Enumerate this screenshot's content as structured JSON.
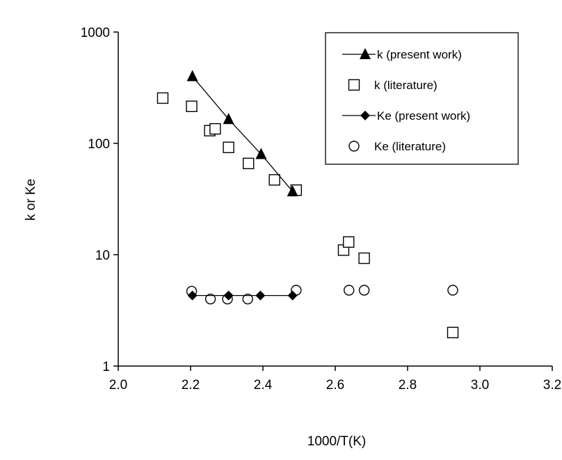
{
  "chart_data": {
    "type": "scatter",
    "title": "",
    "xlabel": "1000/T(K)",
    "ylabel": "k or Ke",
    "xlim": [
      2.0,
      3.2
    ],
    "ylim": [
      1,
      1000
    ],
    "yscale": "log",
    "x_ticks": [
      "2.0",
      "2.2",
      "2.4",
      "2.6",
      "2.8",
      "3.0",
      "3.2"
    ],
    "y_ticks": [
      "1",
      "10",
      "100",
      "1000"
    ],
    "grid": false,
    "legend_position": "top-right",
    "series": [
      {
        "name": "k (present work)",
        "marker": "filled-triangle",
        "line": true,
        "color": "#000000",
        "points": [
          [
            2.205,
            400
          ],
          [
            2.305,
            165
          ],
          [
            2.395,
            80
          ],
          [
            2.482,
            37
          ]
        ]
      },
      {
        "name": "k (literature)",
        "marker": "open-square",
        "line": false,
        "color": "#000000",
        "points": [
          [
            2.123,
            255
          ],
          [
            2.203,
            215
          ],
          [
            2.253,
            130
          ],
          [
            2.268,
            135
          ],
          [
            2.305,
            92
          ],
          [
            2.36,
            66
          ],
          [
            2.432,
            47
          ],
          [
            2.492,
            38
          ],
          [
            2.623,
            11
          ],
          [
            2.637,
            13
          ],
          [
            2.68,
            9.3
          ],
          [
            2.925,
            2.0
          ]
        ]
      },
      {
        "name": "Ke (present work)",
        "marker": "filled-diamond",
        "line": true,
        "color": "#000000",
        "points": [
          [
            2.205,
            4.3
          ],
          [
            2.305,
            4.3
          ],
          [
            2.393,
            4.3
          ],
          [
            2.482,
            4.3
          ]
        ]
      },
      {
        "name": "Ke (literature)",
        "marker": "open-circle",
        "line": false,
        "color": "#000000",
        "points": [
          [
            2.203,
            4.7
          ],
          [
            2.255,
            4.0
          ],
          [
            2.302,
            4.0
          ],
          [
            2.358,
            4.0
          ],
          [
            2.492,
            4.8
          ],
          [
            2.638,
            4.8
          ],
          [
            2.68,
            4.8
          ],
          [
            2.925,
            4.8
          ]
        ]
      }
    ]
  }
}
